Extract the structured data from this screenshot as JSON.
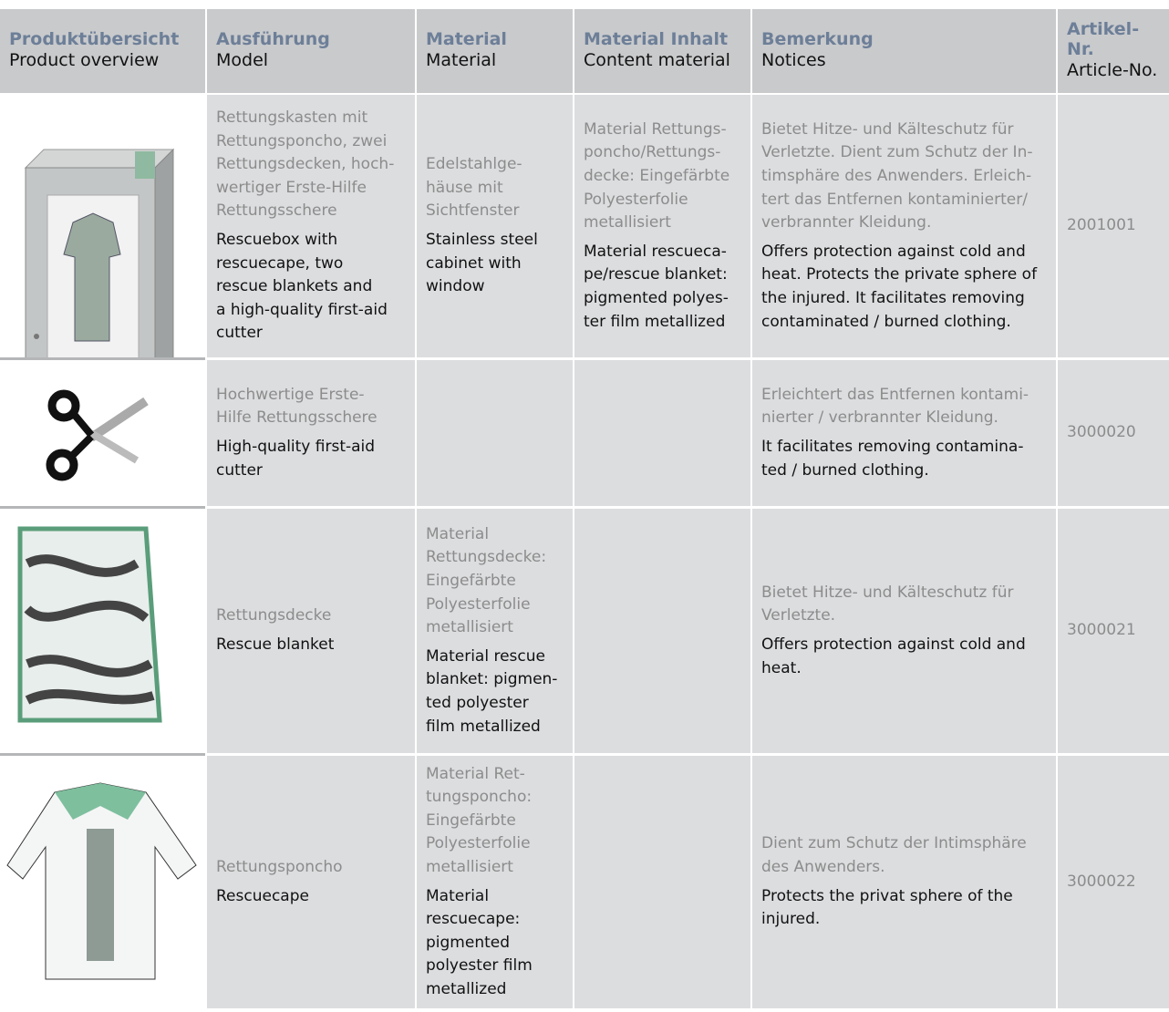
{
  "header": {
    "columns": [
      {
        "de": [
          "Produktübersicht"
        ],
        "en": [
          "Product overview"
        ]
      },
      {
        "de": [
          "Ausführung"
        ],
        "en": [
          "Model"
        ]
      },
      {
        "de": [
          "Material"
        ],
        "en": [
          "Material"
        ]
      },
      {
        "de": [
          "Material Inhalt"
        ],
        "en": [
          "Content material"
        ]
      },
      {
        "de": [
          "Bemerkung"
        ],
        "en": [
          "Notices"
        ]
      },
      {
        "de": [
          "Artikel-",
          "Nr."
        ],
        "en": [
          "Article-No."
        ]
      }
    ]
  },
  "table": {
    "rows": [
      {
        "model": {
          "de": [
            "Rettungskasten mit",
            "Rettungsponcho, zwei",
            "Rettungsdecken, hoch-",
            "wertiger Erste-Hilfe",
            "Rettungsschere"
          ],
          "en": [
            "Rescuebox with",
            "rescuecape, two",
            "rescue blankets and",
            "a high-quality first-aid",
            "cutter"
          ]
        },
        "material": {
          "de": [
            "Edelstahlge-",
            "häuse mit",
            "Sichtfenster"
          ],
          "en": [
            "Stainless steel",
            "cabinet with",
            "window"
          ]
        },
        "content": {
          "de": [
            "Material Rettungs-",
            "poncho/Rettungs-",
            "decke: Eingefärbte",
            "Polyesterfolie",
            "metallisiert"
          ],
          "en": [
            "Material rescueca-",
            "pe/rescue blanket:",
            "pigmented polyes-",
            "ter film metallized"
          ]
        },
        "notice": {
          "de": [
            "Bietet Hitze- und Kälteschutz für",
            "Verletzte. Dient zum Schutz der In-",
            "timsphäre des Anwenders. Erleich-",
            "tert das Entfernen kontaminierter/",
            "verbrannter Kleidung."
          ],
          "en": [
            "Offers protection against cold and",
            "heat. Protects the private sphere of",
            "the injured. It facilitates removing",
            "contaminated / burned clothing."
          ]
        },
        "article": "2001001"
      },
      {
        "model": {
          "de": [
            "Hochwertige Erste-",
            "Hilfe Rettungsschere"
          ],
          "en": [
            "High-quality first-aid",
            "cutter"
          ]
        },
        "notice": {
          "de": [
            "Erleichtert das Entfernen kontami-",
            "nierter / verbrannter Kleidung."
          ],
          "en": [
            "It facilitates removing contamina-",
            "ted / burned clothing."
          ]
        },
        "article": "3000020"
      },
      {
        "model": {
          "de": [
            "Rettungsdecke"
          ],
          "en": [
            "Rescue blanket"
          ]
        },
        "material": {
          "de": [
            "Material",
            "Rettungsdecke:",
            "Eingefärbte",
            "Polyesterfolie",
            "metallisiert"
          ],
          "en": [
            "Material rescue",
            "blanket: pigmen-",
            "ted polyester",
            "film metallized"
          ]
        },
        "notice": {
          "de": [
            "Bietet Hitze- und Kälteschutz für",
            "Verletzte."
          ],
          "en": [
            "Offers protection against cold and",
            "heat."
          ]
        },
        "article": "3000021"
      },
      {
        "model": {
          "de": [
            "Rettungsponcho"
          ],
          "en": [
            "Rescuecape"
          ]
        },
        "material": {
          "de": [
            "Material Ret-",
            "tungsponcho:",
            "Eingefärbte",
            "Polyesterfolie",
            "metallisiert"
          ],
          "en": [
            "Material",
            "rescuecape:",
            "pigmented",
            "polyester film",
            "metallized"
          ]
        },
        "notice": {
          "de": [
            "Dient zum Schutz der Intimsphäre",
            "des Anwenders."
          ],
          "en": [
            "Protects the privat sphere of the",
            "injured."
          ]
        },
        "article": "3000022"
      }
    ]
  }
}
